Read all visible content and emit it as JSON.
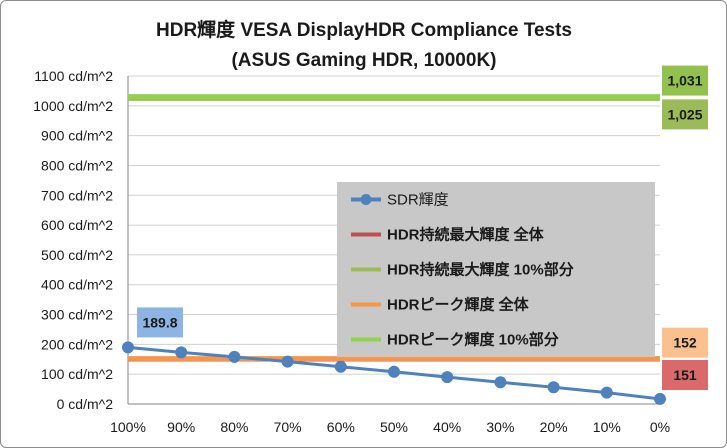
{
  "chart_data": {
    "type": "line",
    "title": "HDR輝度 VESA DisplayHDR Compliance Tests",
    "subtitle": "(ASUS Gaming HDR, 10000K)",
    "xlabel": "",
    "ylabel": "",
    "categories": [
      "100%",
      "90%",
      "80%",
      "70%",
      "60%",
      "50%",
      "40%",
      "30%",
      "20%",
      "10%",
      "0%"
    ],
    "y_ticks": [
      "0 cd/m^2",
      "100 cd/m^2",
      "200 cd/m^2",
      "300 cd/m^2",
      "400 cd/m^2",
      "500 cd/m^2",
      "600 cd/m^2",
      "700 cd/m^2",
      "800 cd/m^2",
      "900 cd/m^2",
      "1000 cd/m^2",
      "1100 cd/m^2"
    ],
    "ylim": [
      0,
      1100
    ],
    "grid": true,
    "legend_position": "center-right",
    "series": [
      {
        "name": "SDR輝度",
        "kind": "line-markers",
        "color": "#4f81bd",
        "bold": false,
        "values": [
          189.8,
          173,
          158,
          142,
          125,
          108,
          90,
          73,
          56,
          38,
          17
        ]
      },
      {
        "name": "HDR持続最大輝度 全体",
        "kind": "hline",
        "color": "#c0504d",
        "bold": true,
        "value": 151
      },
      {
        "name": "HDR持続最大輝度 10%部分",
        "kind": "hline",
        "color": "#9bbb59",
        "bold": true,
        "value": 1025
      },
      {
        "name": "HDRピーク輝度 全体",
        "kind": "hline",
        "color": "#f79646",
        "bold": true,
        "value": 152
      },
      {
        "name": "HDRピーク輝度 10%部分",
        "kind": "hline",
        "color": "#92d050",
        "bold": true,
        "value": 1031
      }
    ],
    "data_labels": [
      {
        "text": "189.8",
        "series": "SDR輝度",
        "at": "first",
        "bg": "#8db4e2"
      },
      {
        "text": "1,031",
        "series": "HDRピーク輝度 10%部分",
        "at": "right",
        "bg": "#92c150"
      },
      {
        "text": "1,025",
        "series": "HDR持続最大輝度 10%部分",
        "at": "right",
        "bg": "#9bbb59"
      },
      {
        "text": "152",
        "series": "HDRピーク輝度 全体",
        "at": "right",
        "bg": "#fac090"
      },
      {
        "text": "151",
        "series": "HDR持続最大輝度 全体",
        "at": "right",
        "bg": "#d9696a"
      }
    ],
    "legend_bg": "#c8c8c8"
  }
}
